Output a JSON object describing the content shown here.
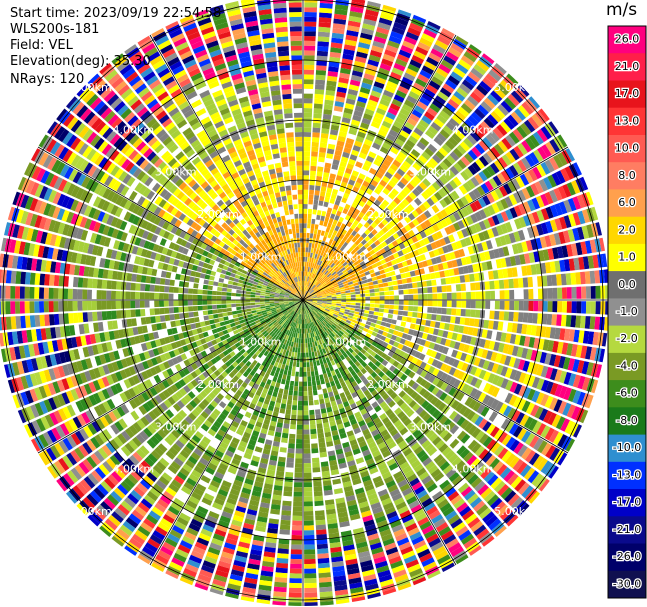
{
  "info": {
    "start_time": "Start time: 2023/09/19 22:54:58",
    "instrument": "WLS200s-181",
    "field": "Field: VEL",
    "elevation": "Elevation(deg): 35.30",
    "nrays": "NRays: 120"
  },
  "chart_data": {
    "type": "heatmap",
    "projection": "polar",
    "title": "",
    "range_rings_km": [
      1.0,
      2.0,
      3.0,
      4.0,
      5.0
    ],
    "range_ring_labels": [
      "1.00km",
      "2.00km",
      "3.00km",
      "4.00km",
      "5.00km"
    ],
    "max_range_km": 5.1,
    "n_rays": 120,
    "colorbar": {
      "unit": "m/s",
      "tick_labels": [
        "26.0",
        "21.0",
        "17.0",
        "13.0",
        "10.0",
        "8.0",
        "6.0",
        "2.0",
        "1.0",
        "0.0",
        "-1.0",
        "-2.0",
        "-4.0",
        "-6.0",
        "-8.0",
        "-10.0",
        "-13.0",
        "-17.0",
        "-21.0",
        "-26.0",
        "-30.0"
      ],
      "colors": [
        "#ff007f",
        "#ff1f4a",
        "#e8141c",
        "#ff3535",
        "#ff5a52",
        "#ff7d62",
        "#ffa04d",
        "#ffd700",
        "#ffff00",
        "#6f6f6f",
        "#909090",
        "#b5d93f",
        "#7a9a24",
        "#3d8d1c",
        "#1a7a1a",
        "#2f8fd0",
        "#0030ff",
        "#0000c8",
        "#0a0a8c",
        "#00006a",
        "#101050"
      ]
    }
  }
}
